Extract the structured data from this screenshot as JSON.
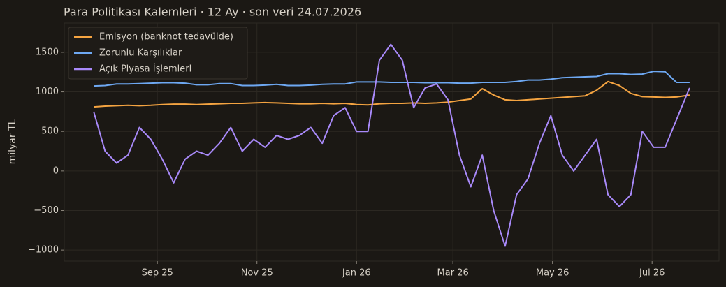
{
  "chart_data": {
    "type": "line",
    "title": "Para Politikası Kalemleri · 12 Ay · son veri 24.07.2026",
    "y_label": "milyar TL",
    "x": [
      "2025-07-24",
      "2025-07-31",
      "2025-08-07",
      "2025-08-14",
      "2025-08-21",
      "2025-08-28",
      "2025-09-04",
      "2025-09-11",
      "2025-09-18",
      "2025-09-25",
      "2025-10-02",
      "2025-10-09",
      "2025-10-16",
      "2025-10-23",
      "2025-10-30",
      "2025-11-06",
      "2025-11-13",
      "2025-11-20",
      "2025-11-27",
      "2025-12-04",
      "2025-12-11",
      "2025-12-18",
      "2025-12-25",
      "2026-01-01",
      "2026-01-08",
      "2026-01-15",
      "2026-01-22",
      "2026-01-29",
      "2026-02-05",
      "2026-02-12",
      "2026-02-19",
      "2026-02-26",
      "2026-03-05",
      "2026-03-12",
      "2026-03-19",
      "2026-03-26",
      "2026-04-02",
      "2026-04-09",
      "2026-04-16",
      "2026-04-23",
      "2026-04-30",
      "2026-05-07",
      "2026-05-14",
      "2026-05-21",
      "2026-05-28",
      "2026-06-04",
      "2026-06-11",
      "2026-06-18",
      "2026-06-25",
      "2026-07-02",
      "2026-07-09",
      "2026-07-16",
      "2026-07-24"
    ],
    "series": [
      {
        "name": "Emisyon (banknot tedavülde)",
        "color": "#f5a441",
        "values": [
          810,
          820,
          825,
          830,
          825,
          830,
          840,
          845,
          845,
          840,
          845,
          850,
          855,
          855,
          860,
          865,
          860,
          855,
          850,
          850,
          855,
          850,
          855,
          840,
          835,
          850,
          855,
          855,
          860,
          855,
          860,
          870,
          890,
          910,
          1040,
          960,
          900,
          890,
          900,
          910,
          920,
          930,
          940,
          950,
          1020,
          1130,
          1080,
          980,
          940,
          935,
          930,
          935,
          960
        ]
      },
      {
        "name": "Zorunlu Karşılıklar",
        "color": "#6ea8f2",
        "values": [
          1075,
          1080,
          1100,
          1100,
          1105,
          1110,
          1115,
          1115,
          1110,
          1090,
          1090,
          1105,
          1105,
          1080,
          1080,
          1085,
          1095,
          1080,
          1080,
          1085,
          1095,
          1100,
          1100,
          1125,
          1125,
          1125,
          1120,
          1120,
          1120,
          1115,
          1115,
          1115,
          1110,
          1110,
          1120,
          1120,
          1120,
          1130,
          1150,
          1150,
          1160,
          1180,
          1185,
          1190,
          1195,
          1230,
          1230,
          1220,
          1225,
          1260,
          1255,
          1120,
          1120
        ]
      },
      {
        "name": "Açık Piyasa İşlemleri",
        "color": "#a98afa",
        "values": [
          750,
          250,
          100,
          200,
          550,
          400,
          150,
          -150,
          150,
          250,
          200,
          350,
          550,
          250,
          400,
          300,
          450,
          400,
          450,
          550,
          350,
          700,
          800,
          500,
          500,
          1400,
          1600,
          1400,
          800,
          1050,
          1100,
          900,
          200,
          -200,
          200,
          -500,
          -950,
          -300,
          -100,
          350,
          700,
          200,
          0,
          200,
          400,
          -300,
          -450,
          -300,
          500,
          300,
          300,
          650,
          1050
        ]
      }
    ],
    "xlim": [
      "2025-07-06",
      "2026-08-11"
    ],
    "xticks": [
      {
        "value": "2025-09-01",
        "label": "Sep 25"
      },
      {
        "value": "2025-11-01",
        "label": "Nov 25"
      },
      {
        "value": "2026-01-01",
        "label": "Jan 26"
      },
      {
        "value": "2026-03-01",
        "label": "Mar 26"
      },
      {
        "value": "2026-05-01",
        "label": "May 26"
      },
      {
        "value": "2026-07-01",
        "label": "Jul 26"
      }
    ],
    "ylim": [
      -1140,
      1870
    ],
    "yticks": [
      {
        "value": -1000,
        "label": "−1000"
      },
      {
        "value": -500,
        "label": "−500"
      },
      0,
      500,
      1000,
      1500
    ],
    "grid": true,
    "legend": "upper left"
  }
}
